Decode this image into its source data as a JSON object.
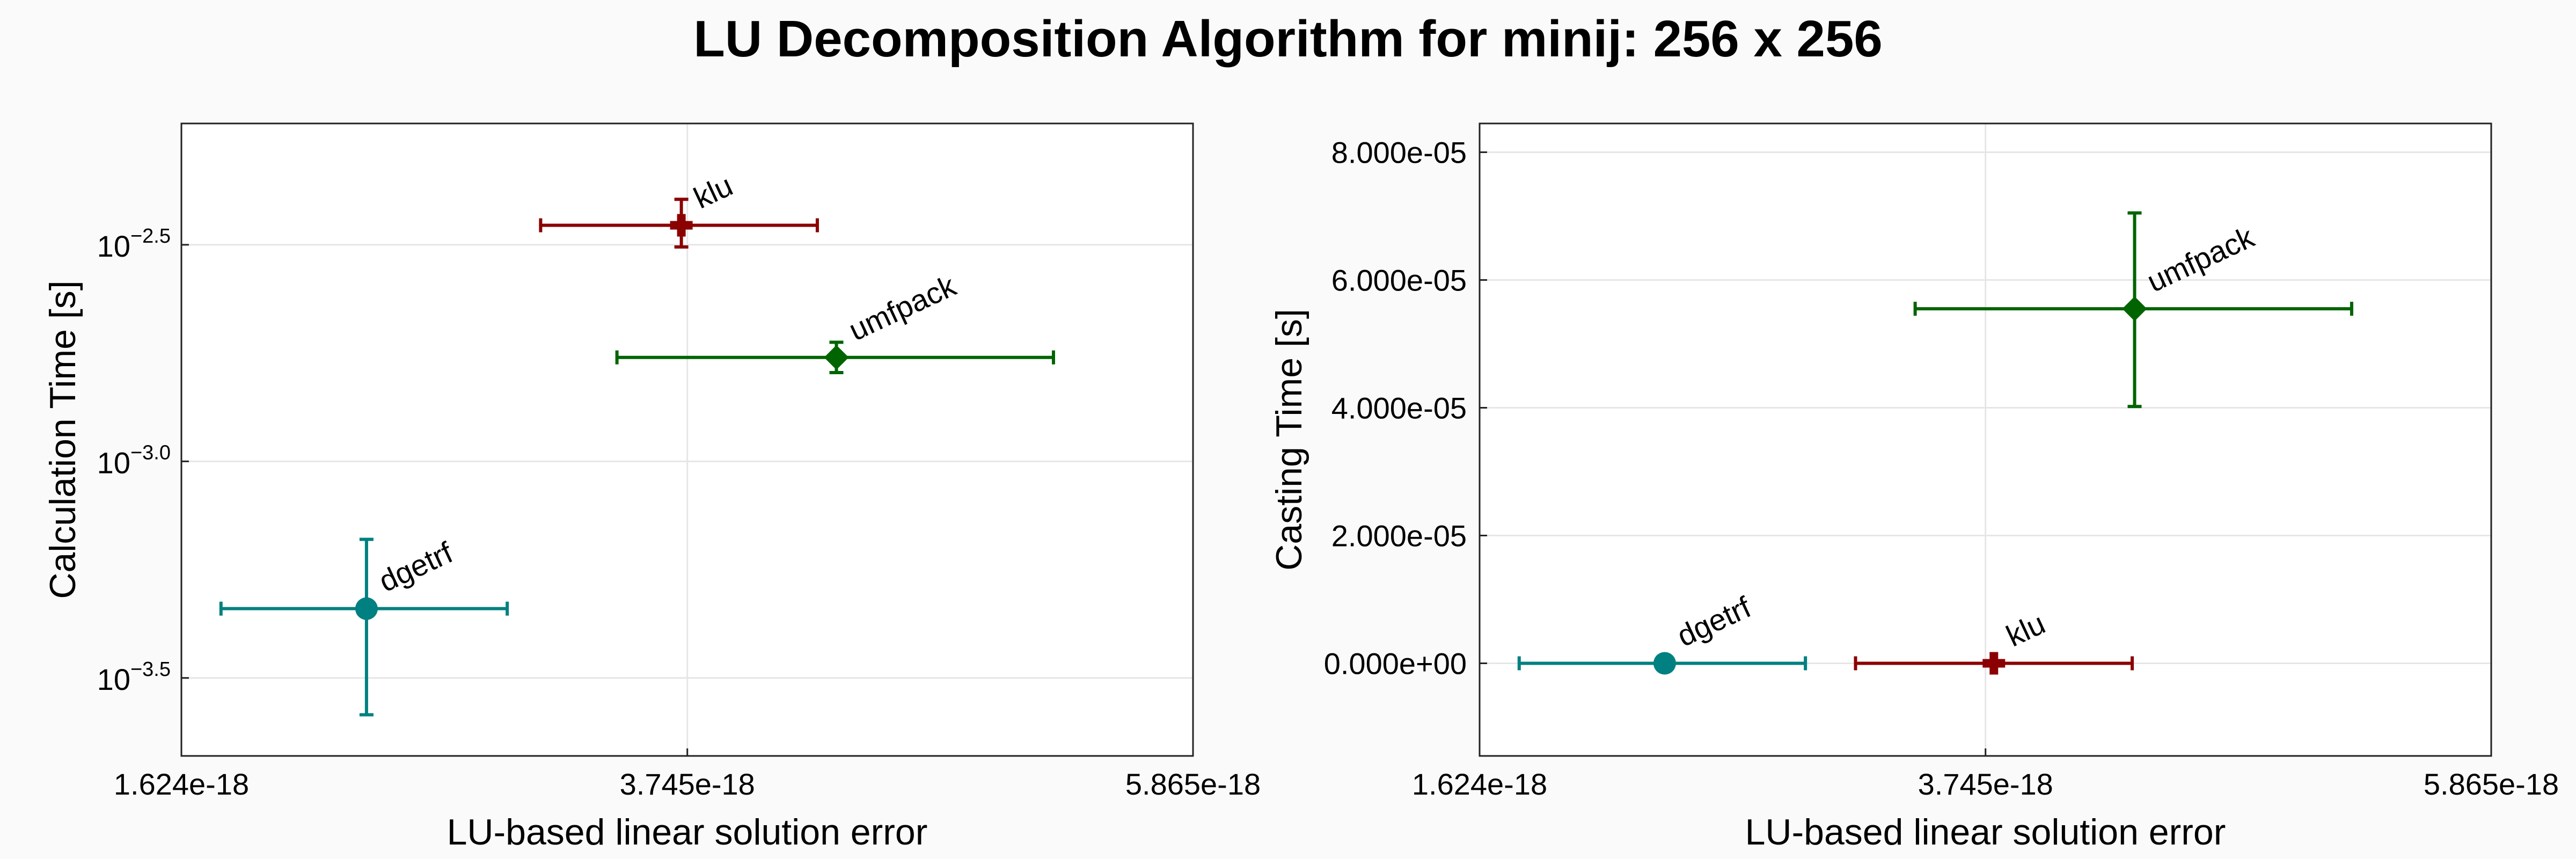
{
  "title": "LU Decomposition Algorithm for minij: 256 x 256",
  "chart_data": [
    {
      "type": "scatter",
      "xlabel": "LU-based linear solution error",
      "ylabel": "Calculation Time [s]",
      "yscale": "log10",
      "xlim": [
        1.624e-18,
        5.865e-18
      ],
      "ylim_log10": [
        -3.68,
        -2.22
      ],
      "x_ticks": [
        "1.624e-18",
        "3.745e-18",
        "5.865e-18"
      ],
      "x_tick_values": [
        1.624e-18,
        3.745e-18,
        5.865e-18
      ],
      "y_ticks": [
        {
          "base": "10",
          "exp": "−2.5"
        },
        {
          "base": "10",
          "exp": "−3.0"
        },
        {
          "base": "10",
          "exp": "−3.5"
        }
      ],
      "y_tick_log10": [
        -2.5,
        -3.0,
        -3.5
      ],
      "grid": true,
      "points": [
        {
          "label": "klu",
          "x": 3.72e-18,
          "xerr": [
            3.13e-18,
            4.29e-18
          ],
          "y_log10": -2.455,
          "yerr_log10": [
            -2.505,
            -2.395
          ],
          "marker": "cross",
          "color": "#8b0000"
        },
        {
          "label": "umfpack",
          "x": 4.37e-18,
          "xerr": [
            3.45e-18,
            5.28e-18
          ],
          "y_log10": -2.76,
          "yerr_log10": [
            -2.795,
            -2.725
          ],
          "marker": "diamond",
          "color": "#006400"
        },
        {
          "label": "dgetrf",
          "x": 2.4e-18,
          "xerr": [
            1.79e-18,
            2.99e-18
          ],
          "y_log10": -3.34,
          "yerr_log10": [
            -3.585,
            -3.18
          ],
          "marker": "circle",
          "color": "#008080"
        }
      ]
    },
    {
      "type": "scatter",
      "xlabel": "LU-based linear solution error",
      "ylabel": "Casting Time [s]",
      "xlim": [
        1.624e-18,
        5.865e-18
      ],
      "ylim": [
        -1.45e-05,
        8.45e-05
      ],
      "x_ticks": [
        "1.624e-18",
        "3.745e-18",
        "5.865e-18"
      ],
      "x_tick_values": [
        1.624e-18,
        3.745e-18,
        5.865e-18
      ],
      "y_ticks": [
        "8.000e-05",
        "6.000e-05",
        "4.000e-05",
        "2.000e-05",
        "0.000e+00"
      ],
      "y_tick_values": [
        8e-05,
        6e-05,
        4e-05,
        2e-05,
        0
      ],
      "grid": true,
      "points": [
        {
          "label": "umfpack",
          "x": 4.37e-18,
          "xerr": [
            3.45e-18,
            5.28e-18
          ],
          "y": 5.55e-05,
          "yerr": [
            4.02e-05,
            7.05e-05
          ],
          "marker": "diamond",
          "color": "#006400"
        },
        {
          "label": "dgetrf",
          "x": 2.4e-18,
          "xerr": [
            1.79e-18,
            2.99e-18
          ],
          "y": 0,
          "yerr": null,
          "marker": "circle",
          "color": "#008080"
        },
        {
          "label": "klu",
          "x": 3.78e-18,
          "xerr": [
            3.2e-18,
            4.36e-18
          ],
          "y": 0,
          "yerr": null,
          "marker": "cross",
          "color": "#8b0000"
        }
      ]
    }
  ]
}
